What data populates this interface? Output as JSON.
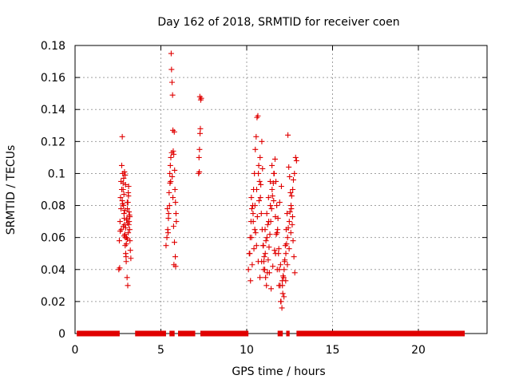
{
  "chart_data": {
    "type": "scatter",
    "title": "Day 162 of 2018, SRMTID for receiver coen",
    "xlabel": "GPS time / hours",
    "ylabel": "SRMTID / TECUs",
    "xlim": [
      0,
      24
    ],
    "ylim": [
      0,
      0.18
    ],
    "xticks": [
      0,
      5,
      10,
      15,
      20
    ],
    "yticks": [
      0,
      0.02,
      0.04,
      0.06,
      0.08,
      0.1,
      0.12,
      0.14,
      0.16,
      0.18
    ],
    "ytick_labels": [
      "0",
      "0.02",
      "0.04",
      "0.06",
      "0.08",
      "0.1",
      "0.12",
      "0.14",
      "0.16",
      "0.18"
    ],
    "grid": true,
    "marker": "+",
    "colors": {
      "series": "#e00000",
      "grid": "#a0a0a0",
      "axis": "#000000"
    },
    "zero_segments": [
      [
        0.1,
        2.6
      ],
      [
        3.5,
        5.3
      ],
      [
        5.5,
        5.8
      ],
      [
        6.0,
        7.0
      ],
      [
        7.3,
        10.1
      ],
      [
        11.8,
        12.1
      ],
      [
        12.3,
        12.5
      ],
      [
        12.9,
        22.7
      ]
    ],
    "series": [
      {
        "name": "SRMTID",
        "x": [
          2.55,
          2.58,
          2.62,
          2.65,
          2.68,
          2.72,
          2.75,
          2.78,
          2.8,
          2.82,
          2.85,
          2.88,
          2.9,
          2.92,
          2.95,
          2.97,
          3.0,
          3.02,
          3.05,
          3.08,
          3.1,
          3.12,
          3.15,
          3.18,
          3.2,
          3.22,
          3.25,
          2.6,
          2.7,
          2.75,
          2.83,
          2.87,
          2.93,
          2.98,
          3.03,
          3.07,
          3.13,
          3.17,
          2.9,
          2.95,
          2.85,
          2.8,
          3.0,
          3.1,
          2.68,
          2.77,
          3.05,
          2.63,
          2.72,
          2.88,
          2.99,
          3.06,
          3.14,
          3.19,
          2.81,
          2.94,
          2.92,
          2.86,
          3.04,
          3.11,
          5.3,
          5.35,
          5.4,
          5.45,
          5.5,
          5.52,
          5.55,
          5.58,
          5.6,
          5.62,
          5.65,
          5.68,
          5.7,
          5.72,
          5.75,
          5.78,
          5.8,
          5.82,
          5.85,
          5.88,
          5.9,
          5.42,
          5.48,
          5.57,
          5.63,
          5.7,
          5.74,
          5.79,
          5.84,
          5.38,
          5.44,
          5.53,
          5.66,
          5.76,
          5.86,
          7.2,
          7.22,
          7.25,
          7.28,
          7.3,
          7.32,
          7.35,
          7.27,
          7.24,
          10.1,
          10.15,
          10.2,
          10.25,
          10.3,
          10.35,
          10.4,
          10.45,
          10.5,
          10.55,
          10.6,
          10.65,
          10.7,
          10.75,
          10.8,
          10.85,
          10.9,
          10.95,
          11.0,
          11.05,
          11.1,
          11.15,
          11.2,
          11.25,
          11.3,
          11.35,
          11.4,
          11.45,
          11.5,
          11.55,
          11.6,
          11.65,
          11.7,
          11.75,
          11.8,
          11.85,
          11.9,
          11.95,
          12.0,
          12.05,
          12.1,
          12.15,
          12.2,
          12.25,
          12.3,
          12.35,
          12.4,
          12.45,
          12.5,
          12.55,
          12.6,
          12.65,
          12.7,
          12.75,
          12.8,
          12.85,
          12.9,
          10.22,
          10.32,
          10.42,
          10.52,
          10.62,
          10.72,
          10.82,
          10.92,
          11.02,
          11.12,
          11.22,
          11.32,
          11.42,
          11.52,
          11.62,
          11.72,
          11.82,
          11.92,
          12.02,
          12.12,
          12.22,
          12.32,
          12.42,
          12.52,
          12.62,
          12.72,
          10.18,
          10.28,
          10.38,
          10.48,
          10.58,
          10.68,
          10.78,
          10.88,
          10.98,
          11.08,
          11.18,
          11.28,
          11.38,
          11.48,
          11.58,
          11.68,
          11.78,
          11.88,
          11.98,
          12.08,
          12.18,
          12.28,
          12.38,
          12.48,
          12.58,
          12.68,
          12.78,
          10.27,
          10.37,
          10.47,
          10.57,
          10.67,
          10.77,
          10.87,
          10.97,
          11.07,
          11.17,
          11.27,
          11.37,
          11.47,
          11.57,
          11.67,
          11.77,
          11.87,
          11.97,
          12.07,
          12.17,
          12.27,
          12.37,
          12.47,
          12.57,
          12.67
        ],
        "y": [
          0.04,
          0.058,
          0.07,
          0.085,
          0.095,
          0.105,
          0.123,
          0.1,
          0.09,
          0.08,
          0.075,
          0.068,
          0.062,
          0.055,
          0.05,
          0.048,
          0.06,
          0.072,
          0.078,
          0.082,
          0.088,
          0.092,
          0.07,
          0.065,
          0.058,
          0.052,
          0.047,
          0.041,
          0.065,
          0.083,
          0.097,
          0.072,
          0.06,
          0.045,
          0.035,
          0.03,
          0.068,
          0.074,
          0.077,
          0.066,
          0.087,
          0.094,
          0.071,
          0.063,
          0.078,
          0.081,
          0.059,
          0.064,
          0.09,
          0.101,
          0.056,
          0.069,
          0.076,
          0.073,
          0.067,
          0.093,
          0.099,
          0.061,
          0.082,
          0.086,
          0.055,
          0.06,
          0.065,
          0.075,
          0.08,
          0.1,
          0.105,
          0.11,
          0.175,
          0.165,
          0.157,
          0.149,
          0.127,
          0.114,
          0.112,
          0.126,
          0.102,
          0.09,
          0.082,
          0.075,
          0.07,
          0.063,
          0.088,
          0.095,
          0.113,
          0.085,
          0.067,
          0.057,
          0.048,
          0.078,
          0.072,
          0.094,
          0.098,
          0.043,
          0.042,
          0.1,
          0.11,
          0.115,
          0.125,
          0.128,
          0.146,
          0.147,
          0.148,
          0.101,
          0.04,
          0.05,
          0.06,
          0.07,
          0.078,
          0.08,
          0.09,
          0.1,
          0.115,
          0.123,
          0.135,
          0.136,
          0.105,
          0.095,
          0.085,
          0.075,
          0.065,
          0.055,
          0.045,
          0.04,
          0.035,
          0.03,
          0.038,
          0.046,
          0.054,
          0.062,
          0.07,
          0.078,
          0.086,
          0.094,
          0.1,
          0.109,
          0.095,
          0.08,
          0.065,
          0.05,
          0.04,
          0.03,
          0.02,
          0.016,
          0.025,
          0.035,
          0.045,
          0.055,
          0.065,
          0.075,
          0.124,
          0.104,
          0.098,
          0.088,
          0.078,
          0.068,
          0.058,
          0.048,
          0.038,
          0.11,
          0.108,
          0.033,
          0.043,
          0.053,
          0.063,
          0.073,
          0.083,
          0.093,
          0.103,
          0.048,
          0.058,
          0.068,
          0.038,
          0.028,
          0.042,
          0.052,
          0.062,
          0.072,
          0.082,
          0.092,
          0.036,
          0.046,
          0.056,
          0.066,
          0.076,
          0.086,
          0.096,
          0.05,
          0.06,
          0.07,
          0.08,
          0.09,
          0.1,
          0.11,
          0.12,
          0.04,
          0.05,
          0.06,
          0.07,
          0.08,
          0.09,
          0.1,
          0.05,
          0.04,
          0.03,
          0.02,
          0.03,
          0.04,
          0.05,
          0.06,
          0.07,
          0.08,
          0.09,
          0.1,
          0.085,
          0.075,
          0.065,
          0.055,
          0.045,
          0.035,
          0.045,
          0.055,
          0.065,
          0.075,
          0.085,
          0.095,
          0.105,
          0.083,
          0.073,
          0.063,
          0.053,
          0.043,
          0.033,
          0.023,
          0.033,
          0.043,
          0.053,
          0.063,
          0.073
        ]
      }
    ]
  }
}
